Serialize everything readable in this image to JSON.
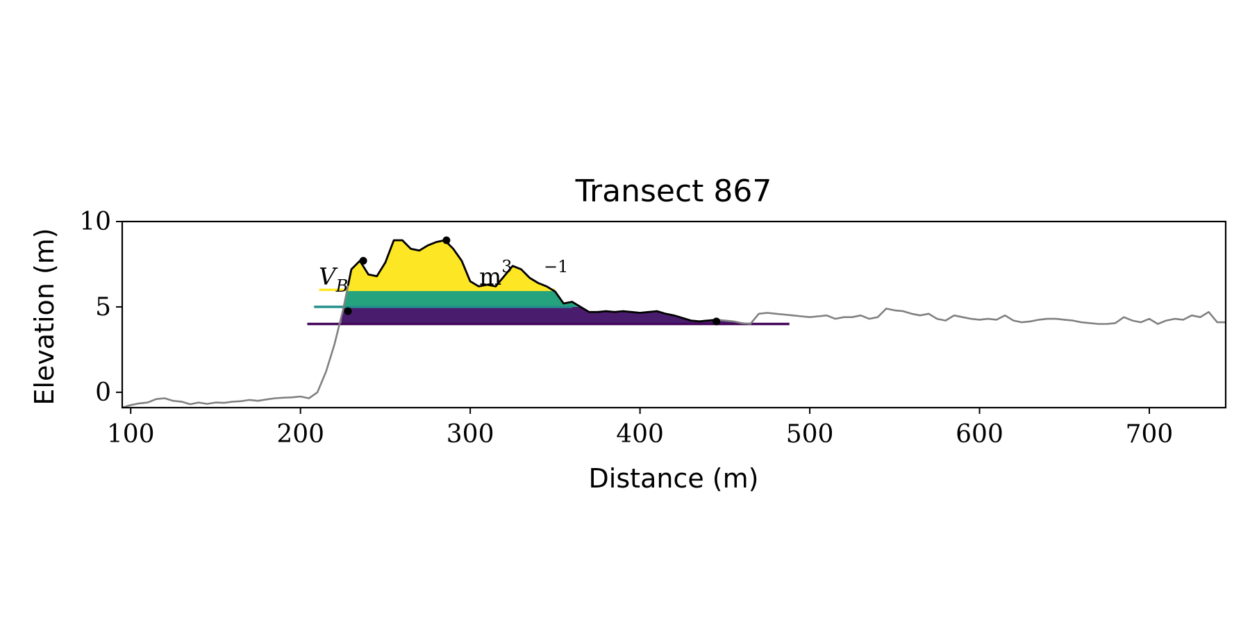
{
  "colors": {
    "profile_full": "#808080",
    "profile_focus": "#000000",
    "level_low": "#44065a",
    "level_mid": "#23908b",
    "level_high": "#fde725",
    "fill_low": "#4a1c6e",
    "fill_mid": "#25a27e",
    "fill_high": "#fde725",
    "frame": "#000000"
  },
  "chart_data": {
    "type": "area",
    "title": "Transect 867",
    "xlabel": "Distance (m)",
    "ylabel": "Elevation (m)",
    "xlim": [
      95,
      745
    ],
    "ylim": [
      -0.9,
      10
    ],
    "xticks": [
      100,
      200,
      300,
      400,
      500,
      600,
      700
    ],
    "yticks": [
      0,
      5,
      10
    ],
    "grid": false,
    "annotation": {
      "symbol": "V",
      "subscript": "B",
      "visible_tail": "m",
      "sup1": "3",
      "sup2": "−1"
    },
    "profile": {
      "x": [
        95,
        100,
        105,
        110,
        115,
        120,
        125,
        130,
        135,
        140,
        145,
        150,
        155,
        160,
        165,
        170,
        175,
        180,
        185,
        190,
        195,
        200,
        205,
        210,
        215,
        220,
        225,
        230,
        235,
        240,
        245,
        250,
        255,
        260,
        265,
        270,
        275,
        280,
        285,
        290,
        295,
        300,
        305,
        310,
        315,
        320,
        325,
        330,
        335,
        340,
        345,
        350,
        355,
        360,
        365,
        370,
        375,
        380,
        385,
        390,
        395,
        400,
        405,
        410,
        415,
        420,
        425,
        430,
        435,
        440,
        445,
        450,
        455,
        460,
        465,
        470,
        475,
        480,
        485,
        490,
        495,
        500,
        505,
        510,
        515,
        520,
        525,
        530,
        535,
        540,
        545,
        550,
        555,
        560,
        565,
        570,
        575,
        580,
        585,
        590,
        595,
        600,
        605,
        610,
        615,
        620,
        625,
        630,
        635,
        640,
        645,
        650,
        655,
        660,
        665,
        670,
        675,
        680,
        685,
        690,
        695,
        700,
        705,
        710,
        715,
        720,
        725,
        730,
        735,
        740,
        745
      ],
      "y": [
        -0.9,
        -0.75,
        -0.65,
        -0.6,
        -0.4,
        -0.35,
        -0.5,
        -0.55,
        -0.7,
        -0.6,
        -0.68,
        -0.6,
        -0.62,
        -0.55,
        -0.52,
        -0.45,
        -0.5,
        -0.42,
        -0.35,
        -0.32,
        -0.3,
        -0.25,
        -0.35,
        0.0,
        1.2,
        2.8,
        4.8,
        7.2,
        7.7,
        6.9,
        6.8,
        7.6,
        8.9,
        8.9,
        8.4,
        8.3,
        8.6,
        8.8,
        8.9,
        8.4,
        7.7,
        6.5,
        6.2,
        6.3,
        6.2,
        6.8,
        7.4,
        7.2,
        6.7,
        6.4,
        6.2,
        5.9,
        5.2,
        5.3,
        5.0,
        4.7,
        4.7,
        4.75,
        4.7,
        4.75,
        4.7,
        4.65,
        4.7,
        4.75,
        4.6,
        4.5,
        4.35,
        4.2,
        4.15,
        4.2,
        4.25,
        4.2,
        4.15,
        4.05,
        4.0,
        4.6,
        4.65,
        4.6,
        4.55,
        4.5,
        4.45,
        4.4,
        4.45,
        4.5,
        4.3,
        4.4,
        4.4,
        4.5,
        4.3,
        4.4,
        4.9,
        4.8,
        4.75,
        4.6,
        4.5,
        4.6,
        4.3,
        4.2,
        4.5,
        4.4,
        4.3,
        4.25,
        4.3,
        4.25,
        4.5,
        4.2,
        4.1,
        4.15,
        4.25,
        4.3,
        4.3,
        4.25,
        4.2,
        4.1,
        4.05,
        4.0,
        4.0,
        4.05,
        4.4,
        4.2,
        4.1,
        4.3,
        4.0,
        4.2,
        4.3,
        4.25,
        4.5,
        4.4,
        4.7,
        4.1,
        4.1
      ]
    },
    "focus_range": [
      228,
      445
    ],
    "markers": [
      {
        "x": 228,
        "y": 4.75
      },
      {
        "x": 237,
        "y": 7.7
      },
      {
        "x": 286,
        "y": 8.9
      },
      {
        "x": 445,
        "y": 4.15
      }
    ],
    "levels": [
      {
        "name": "",
        "elevation": 4.0,
        "line_x": [
          204,
          488
        ]
      },
      {
        "name": "",
        "elevation": 5.0,
        "line_x": [
          208,
          360
        ]
      },
      {
        "name": "",
        "elevation": 6.0,
        "line_x": [
          211,
          350
        ]
      }
    ]
  }
}
